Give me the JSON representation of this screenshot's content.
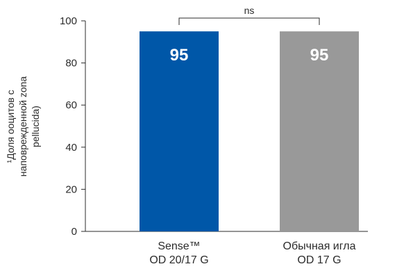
{
  "chart_data": {
    "type": "bar",
    "ylabel_lines": [
      "¹Доля ооцитов с",
      "наповрежденной zona",
      "pellucida)"
    ],
    "categories": [
      [
        "Sense™",
        "OD 20/17 G"
      ],
      [
        "Обычная игла",
        "OD 17 G"
      ]
    ],
    "values": [
      95,
      95
    ],
    "data_labels": [
      "95",
      "95"
    ],
    "bar_colors": [
      "#0057a8",
      "#999999"
    ],
    "ylim": [
      0,
      100
    ],
    "yticks": [
      0,
      20,
      40,
      60,
      80,
      100
    ],
    "grid": false,
    "significance": {
      "label": "ns",
      "between": [
        0,
        1
      ]
    }
  }
}
